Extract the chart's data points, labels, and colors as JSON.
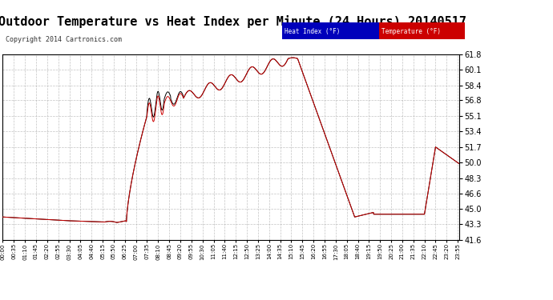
{
  "title": "Outdoor Temperature vs Heat Index per Minute (24 Hours) 20140517",
  "copyright": "Copyright 2014 Cartronics.com",
  "ylabel_right_ticks": [
    41.6,
    43.3,
    45.0,
    46.6,
    48.3,
    50.0,
    51.7,
    53.4,
    55.1,
    56.8,
    58.4,
    60.1,
    61.8
  ],
  "ymin": 41.6,
  "ymax": 61.8,
  "legend_heat_index_label": "Heat Index (°F)",
  "legend_temp_label": "Temperature (°F)",
  "legend_heat_index_bg": "#0000bb",
  "legend_temp_bg": "#cc0000",
  "line_color_heat": "#000000",
  "line_color_temp": "#cc0000",
  "bg_color": "#ffffff",
  "grid_color": "#aaaaaa",
  "title_fontsize": 11,
  "copyright_fontsize": 6,
  "x_tick_interval": 35,
  "total_minutes": 1440
}
